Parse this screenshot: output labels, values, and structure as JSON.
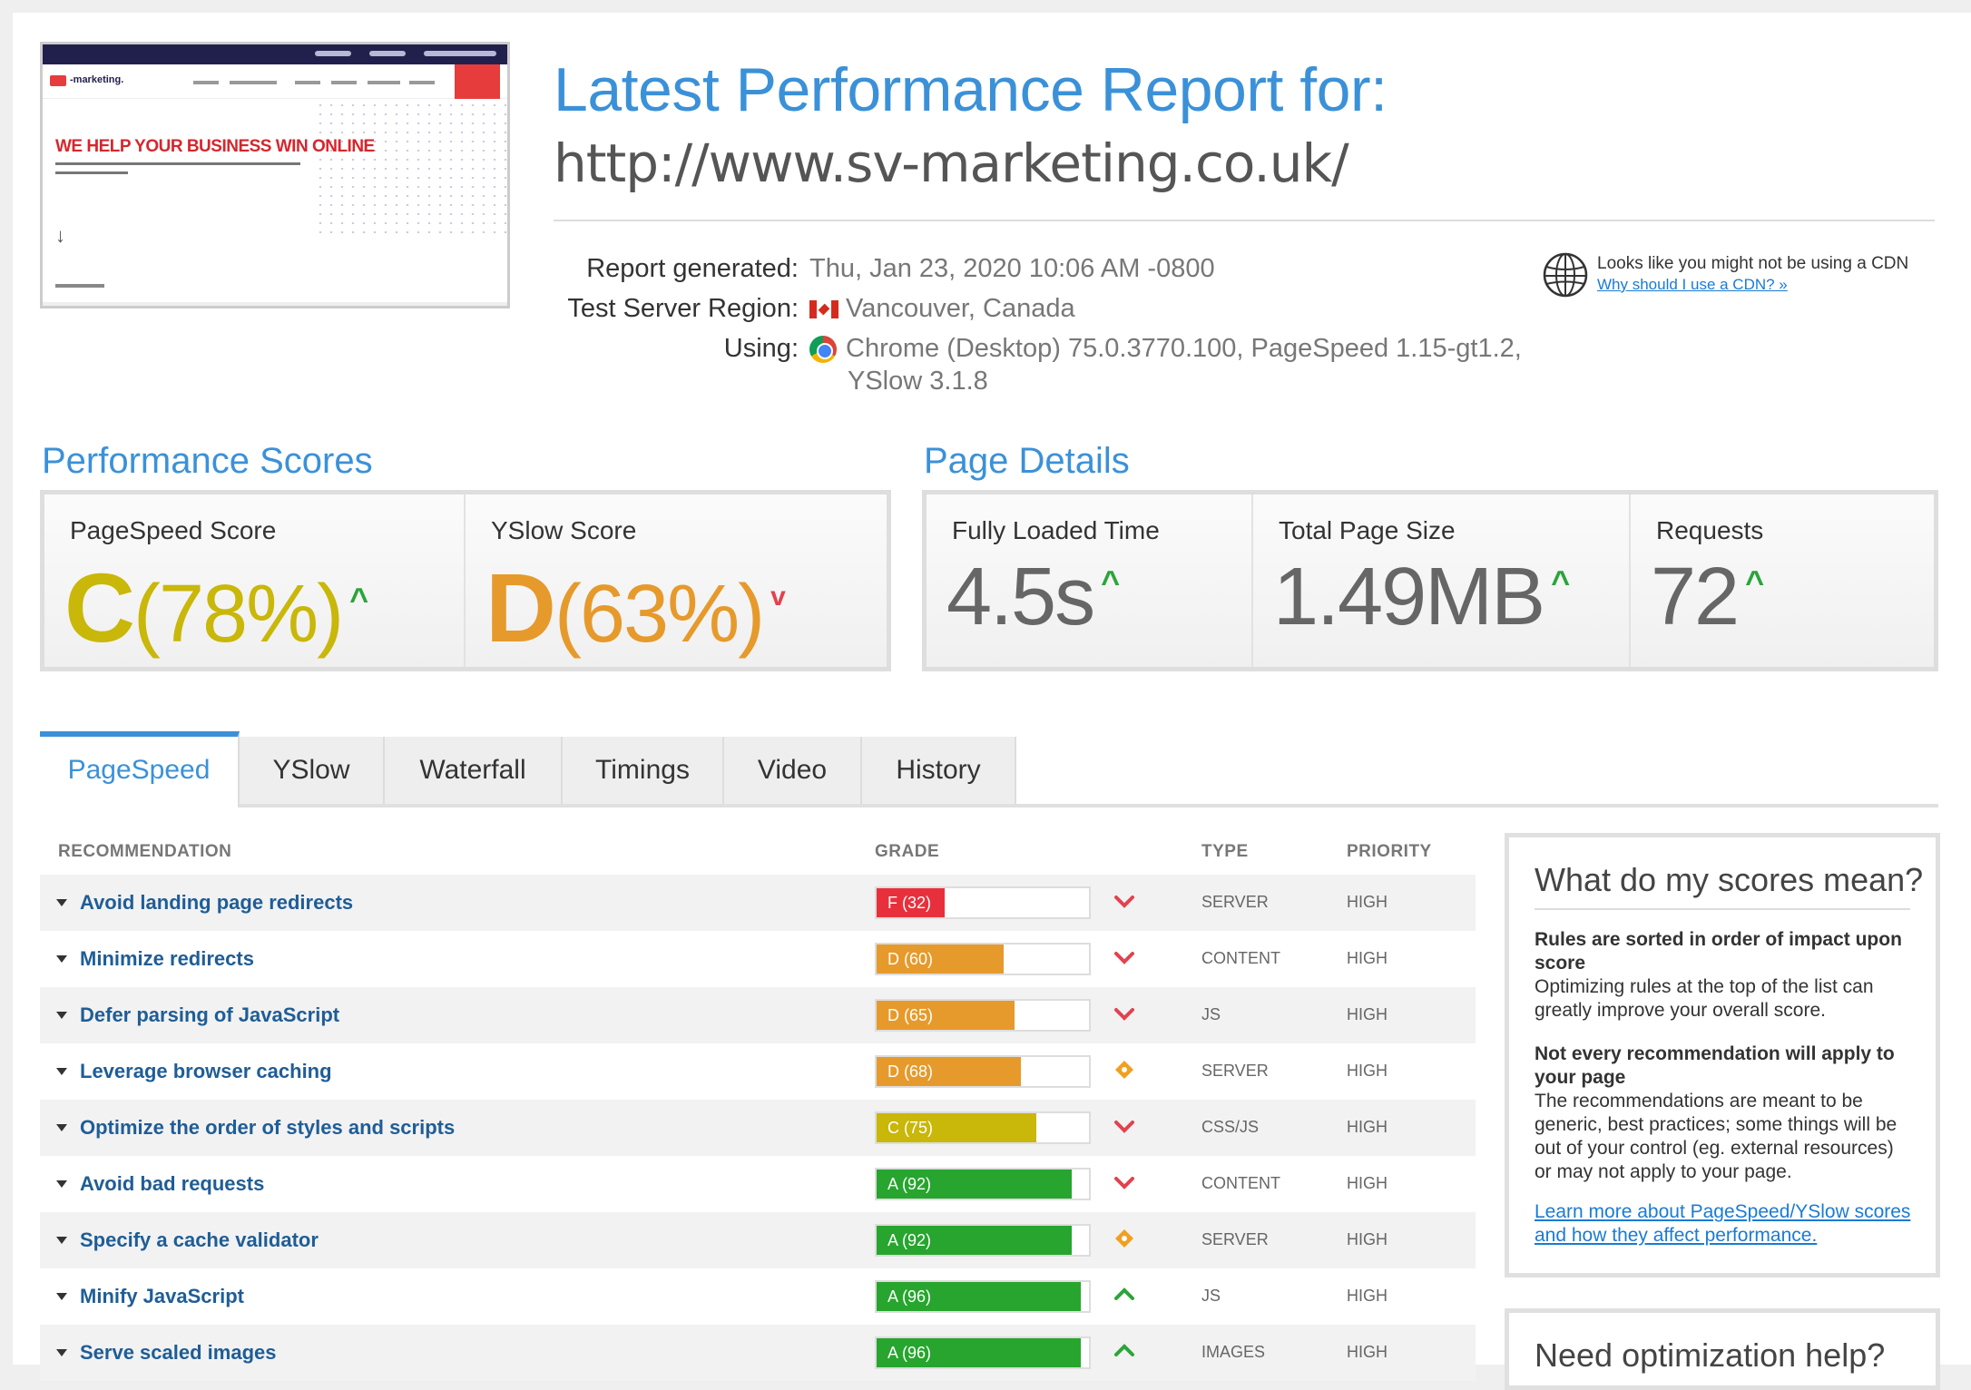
{
  "header": {
    "title": "Latest Performance Report for:",
    "url": "http://www.sv-marketing.co.uk/",
    "thumbnail": {
      "logo_text": "-marketing.",
      "hero_text": "WE HELP YOUR BUSINESS WIN ONLINE"
    },
    "meta": {
      "generated_label": "Report generated:",
      "generated_value": "Thu, Jan 23, 2020 10:06 AM -0800",
      "region_label": "Test Server Region:",
      "region_value": "Vancouver, Canada",
      "using_label": "Using:",
      "using_value_line1": "Chrome (Desktop) 75.0.3770.100, PageSpeed 1.15-gt1.2,",
      "using_value_line2": "YSlow 3.1.8"
    },
    "cdn": {
      "text": "Looks like you might not be using a CDN",
      "link": "Why should I use a CDN? »",
      "icon": "globe-icon"
    }
  },
  "performance_scores": {
    "title": "Performance Scores",
    "pagespeed": {
      "label": "PageSpeed Score",
      "grade": "C",
      "percent": "(78%)",
      "trend": "up",
      "color": "#c9b709"
    },
    "yslow": {
      "label": "YSlow Score",
      "grade": "D",
      "percent": "(63%)",
      "trend": "down",
      "color": "#e69a2b"
    }
  },
  "page_details": {
    "title": "Page Details",
    "fully_loaded": {
      "label": "Fully Loaded Time",
      "value": "4.5s",
      "trend": "up"
    },
    "page_size": {
      "label": "Total Page Size",
      "value": "1.49MB",
      "trend": "up"
    },
    "requests": {
      "label": "Requests",
      "value": "72",
      "trend": "up"
    }
  },
  "tabs": [
    {
      "label": "PageSpeed",
      "active": true
    },
    {
      "label": "YSlow",
      "active": false
    },
    {
      "label": "Waterfall",
      "active": false
    },
    {
      "label": "Timings",
      "active": false
    },
    {
      "label": "Video",
      "active": false
    },
    {
      "label": "History",
      "active": false
    }
  ],
  "table": {
    "headers": {
      "recommendation": "RECOMMENDATION",
      "grade": "GRADE",
      "type": "TYPE",
      "priority": "PRIORITY"
    },
    "rows": [
      {
        "name": "Avoid landing page redirects",
        "grade": "F",
        "label": "F (32)",
        "score": 32,
        "trend": "down",
        "type": "SERVER",
        "priority": "HIGH"
      },
      {
        "name": "Minimize redirects",
        "grade": "D",
        "label": "D (60)",
        "score": 60,
        "trend": "down",
        "type": "CONTENT",
        "priority": "HIGH"
      },
      {
        "name": "Defer parsing of JavaScript",
        "grade": "D",
        "label": "D (65)",
        "score": 65,
        "trend": "down",
        "type": "JS",
        "priority": "HIGH"
      },
      {
        "name": "Leverage browser caching",
        "grade": "D",
        "label": "D (68)",
        "score": 68,
        "trend": "neutral",
        "type": "SERVER",
        "priority": "HIGH"
      },
      {
        "name": "Optimize the order of styles and scripts",
        "grade": "C",
        "label": "C (75)",
        "score": 75,
        "trend": "down",
        "type": "CSS/JS",
        "priority": "HIGH"
      },
      {
        "name": "Avoid bad requests",
        "grade": "A",
        "label": "A (92)",
        "score": 92,
        "trend": "down",
        "type": "CONTENT",
        "priority": "HIGH"
      },
      {
        "name": "Specify a cache validator",
        "grade": "A",
        "label": "A (92)",
        "score": 92,
        "trend": "neutral",
        "type": "SERVER",
        "priority": "HIGH"
      },
      {
        "name": "Minify JavaScript",
        "grade": "A",
        "label": "A (96)",
        "score": 96,
        "trend": "up",
        "type": "JS",
        "priority": "HIGH"
      },
      {
        "name": "Serve scaled images",
        "grade": "A",
        "label": "A (96)",
        "score": 96,
        "trend": "up",
        "type": "IMAGES",
        "priority": "HIGH"
      }
    ]
  },
  "sidebar": {
    "scores_panel": {
      "title": "What do my scores mean?",
      "p1_bold": "Rules are sorted in order of impact upon score",
      "p1_text": "Optimizing rules at the top of the list can greatly improve your overall score.",
      "p2_bold": "Not every recommendation will apply to your page",
      "p2_text": "The recommendations are meant to be generic, best practices; some things will be out of your control (eg. external resources) or may not apply to your page.",
      "link": "Learn more about PageSpeed/YSlow scores and how they affect performance."
    },
    "help_panel": {
      "title": "Need optimization help?"
    }
  },
  "colors": {
    "accent": "#3b91d8",
    "up": "#2ba53a",
    "down": "#e2424e",
    "neutral": "#f0a020"
  }
}
